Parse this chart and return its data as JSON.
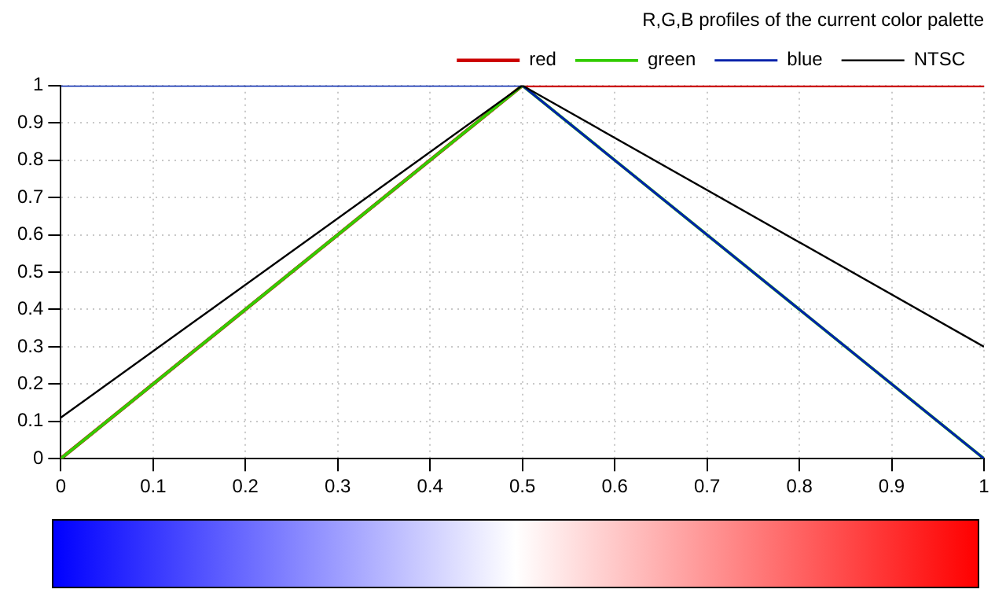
{
  "chart_data": {
    "type": "line",
    "title": "R,G,B profiles of the current color palette",
    "x": [
      0,
      0.5,
      1
    ],
    "series": [
      {
        "name": "red",
        "color": "#cc0000",
        "values": [
          0,
          1,
          1
        ]
      },
      {
        "name": "green",
        "color": "#33cc00",
        "values": [
          0,
          1,
          0
        ]
      },
      {
        "name": "blue",
        "color": "#0022aa",
        "values": [
          1,
          1,
          0
        ]
      },
      {
        "name": "NTSC",
        "color": "#000000",
        "values": [
          0.11,
          1,
          0.3
        ]
      }
    ],
    "xlim": [
      0,
      1
    ],
    "xticks": [
      0,
      0.1,
      0.2,
      0.3,
      0.4,
      0.5,
      0.6,
      0.7,
      0.8,
      0.9,
      1
    ],
    "ylim": [
      0,
      1
    ],
    "yticks": [
      0,
      0.1,
      0.2,
      0.3,
      0.4,
      0.5,
      0.6,
      0.7,
      0.8,
      0.9,
      1
    ],
    "grid": true,
    "legend": "top right",
    "marker": "none",
    "line_style": "solid"
  }
}
